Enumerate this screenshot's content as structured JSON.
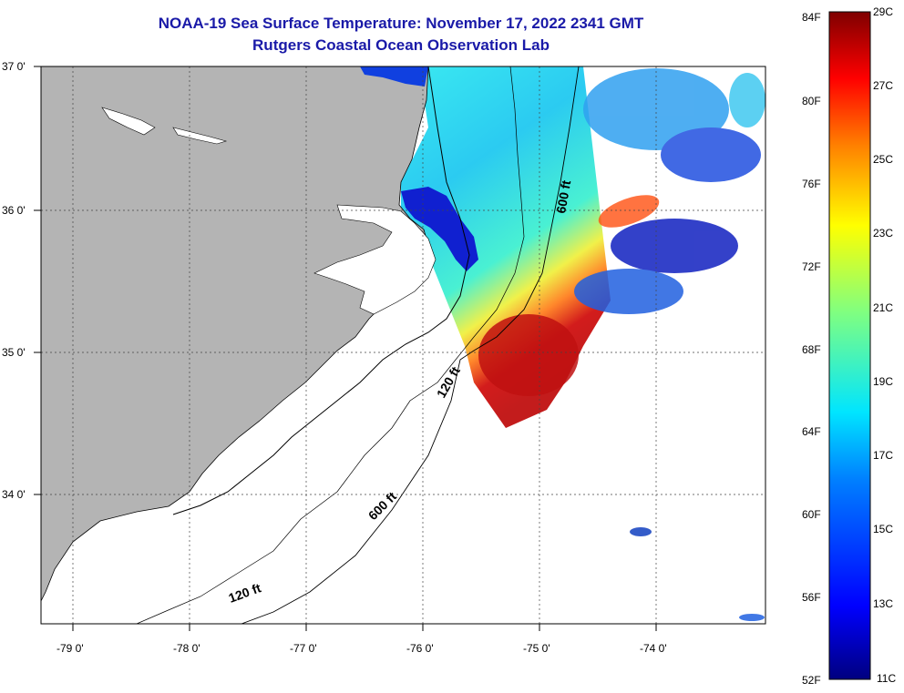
{
  "title": "NOAA-19 Sea Surface Temperature:  November 17, 2022 2341 GMT",
  "subtitle": "Rutgers Coastal Ocean Observation Lab",
  "latitude_labels": [
    "37 0'",
    "36 0'",
    "35 0'",
    "34 0'"
  ],
  "longitude_labels": [
    "-79 0'",
    "-78 0'",
    "-77 0'",
    "-76 0'",
    "-75 0'",
    "-74 0'"
  ],
  "contour_labels": [
    "600 ft",
    "120 ft",
    "600 ft",
    "120 ft"
  ],
  "colorbar": {
    "fahrenheit": [
      "84F",
      "80F",
      "76F",
      "72F",
      "68F",
      "64F",
      "60F",
      "56F",
      "52F"
    ],
    "celsius": [
      "29C",
      "27C",
      "25C",
      "23C",
      "21C",
      "19C",
      "17C",
      "15C",
      "13C",
      "11C"
    ]
  },
  "colors": {
    "land": "#b4b4b4",
    "title": "#1a1aa8",
    "no_data": "#ffffff"
  }
}
